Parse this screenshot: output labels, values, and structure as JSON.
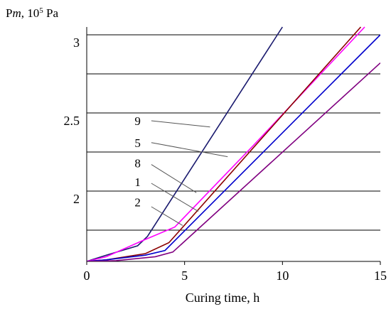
{
  "chart_data": {
    "type": "line",
    "title": "",
    "ylabel": {
      "main": "P",
      "sub": "m",
      "rest": ", 10",
      "sup": "5",
      "unit": " Pa"
    },
    "xlabel": "Curing time, h",
    "xlim": [
      0,
      15
    ],
    "ylim": [
      1.6,
      3.1
    ],
    "xticks": [
      0,
      5,
      10,
      15
    ],
    "yticks": [
      {
        "value": 2.0,
        "label": "2"
      },
      {
        "value": 2.5,
        "label": "2.5"
      },
      {
        "value": 3.0,
        "label": "3"
      }
    ],
    "gridlines_y": [
      1.8,
      2.05,
      2.3,
      2.55,
      2.8,
      3.05
    ],
    "series": [
      {
        "name": "9",
        "color": "#1a1a6e",
        "points": [
          [
            0,
            1.6
          ],
          [
            1.0,
            1.64
          ],
          [
            2.6,
            1.7
          ],
          [
            3.1,
            1.76
          ],
          [
            10.0,
            3.1
          ]
        ]
      },
      {
        "name": "5",
        "color": "#ff00ff",
        "points": [
          [
            0,
            1.6
          ],
          [
            1.0,
            1.63
          ],
          [
            2.8,
            1.73
          ],
          [
            4.5,
            1.82
          ],
          [
            8.5,
            2.34
          ],
          [
            14.2,
            3.1
          ]
        ]
      },
      {
        "name": "8",
        "color": "#8b0000",
        "points": [
          [
            0,
            1.6
          ],
          [
            1.0,
            1.61
          ],
          [
            3.0,
            1.65
          ],
          [
            4.2,
            1.72
          ],
          [
            14.0,
            3.1
          ]
        ]
      },
      {
        "name": "1",
        "color": "#0000cc",
        "points": [
          [
            0,
            1.6
          ],
          [
            1.0,
            1.61
          ],
          [
            3.0,
            1.64
          ],
          [
            4.0,
            1.67
          ],
          [
            15.0,
            3.05
          ]
        ]
      },
      {
        "name": "2",
        "color": "#800080",
        "points": [
          [
            0,
            1.6
          ],
          [
            1.5,
            1.605
          ],
          [
            3.5,
            1.63
          ],
          [
            4.4,
            1.66
          ],
          [
            15.0,
            2.87
          ]
        ]
      }
    ],
    "annotations": [
      {
        "label": "9",
        "text_at": [
          2.6,
          2.5
        ],
        "line_from": [
          3.3,
          2.5
        ],
        "line_to": [
          6.3,
          2.46
        ]
      },
      {
        "label": "5",
        "text_at": [
          2.6,
          2.36
        ],
        "line_from": [
          3.3,
          2.36
        ],
        "line_to": [
          7.2,
          2.27
        ]
      },
      {
        "label": "8",
        "text_at": [
          2.6,
          2.23
        ],
        "line_from": [
          3.3,
          2.22
        ],
        "line_to": [
          5.6,
          2.04
        ]
      },
      {
        "label": "1",
        "text_at": [
          2.6,
          2.11
        ],
        "line_from": [
          3.3,
          2.1
        ],
        "line_to": [
          5.7,
          1.92
        ]
      },
      {
        "label": "2",
        "text_at": [
          2.6,
          1.98
        ],
        "line_from": [
          3.3,
          1.95
        ],
        "line_to": [
          4.9,
          1.83
        ]
      }
    ]
  }
}
